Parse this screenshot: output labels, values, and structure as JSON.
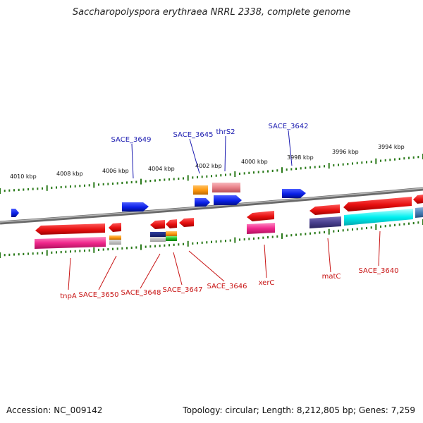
{
  "title": "Saccharopolyspora erythraea NRRL 2338, complete genome",
  "accession": "Accession: NC_009142",
  "topology": "Topology: circular; Length: 8,212,805 bp; Genes: 7,259",
  "colors": {
    "forward_gene": "#0a1fe6",
    "reverse_gene": "#e60f0f",
    "forward_label": "#1a1ab0",
    "reverse_label": "#c81414",
    "tick": "#2a7a1a",
    "backbone": "#808080"
  },
  "scale_ticks": [
    "4010 kbp",
    "4008 kbp",
    "4006 kbp",
    "4004 kbp",
    "4002 kbp",
    "4000 kbp",
    "3998 kbp",
    "3996 kbp",
    "3994 kbp"
  ],
  "forward_labels": [
    "SACE_3649",
    "SACE_3645",
    "thrS2",
    "SACE_3642"
  ],
  "reverse_labels": [
    "tnpA",
    "SACE_3650",
    "SACE_3648",
    "SACE_3647",
    "SACE_3646",
    "xerC",
    "matC",
    "SACE_3640"
  ]
}
